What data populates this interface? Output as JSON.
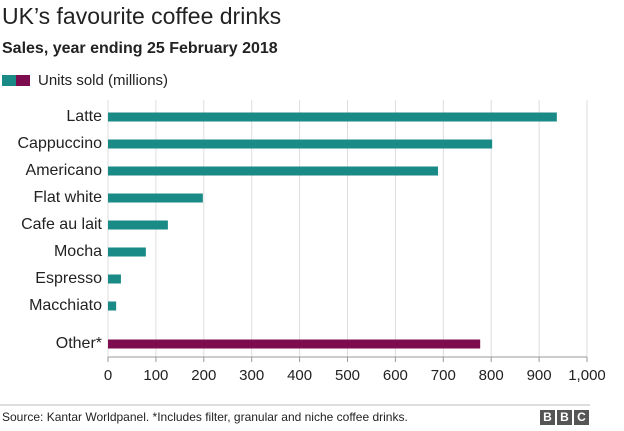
{
  "chart_data": {
    "type": "bar",
    "orientation": "horizontal",
    "title": "UK’s favourite coffee drinks",
    "subtitle": "Sales, year ending 25 February 2018",
    "categories": [
      "Latte",
      "Cappuccino",
      "Americano",
      "Flat white",
      "Cafe au lait",
      "Mocha",
      "Espresso",
      "Macchiato",
      "Other*"
    ],
    "series": [
      {
        "name": "Units sold (millions)",
        "colors": [
          "#1a8a87",
          "#1a8a87",
          "#1a8a87",
          "#1a8a87",
          "#1a8a87",
          "#1a8a87",
          "#1a8a87",
          "#1a8a87",
          "#7d0c4f"
        ],
        "values": [
          937,
          802,
          689,
          198,
          125,
          79,
          27,
          17,
          777
        ]
      }
    ],
    "xlim": [
      0,
      1000
    ],
    "xticks": [
      0,
      100,
      200,
      300,
      400,
      500,
      600,
      700,
      800,
      900,
      {
        "value": 1000,
        "label": "1,000"
      }
    ],
    "grid": true,
    "legend": "top-left",
    "source": "Source: Kantar Worldpanel. *Includes filter, granular and niche coffee drinks.",
    "logo": [
      "B",
      "B",
      "C"
    ]
  }
}
